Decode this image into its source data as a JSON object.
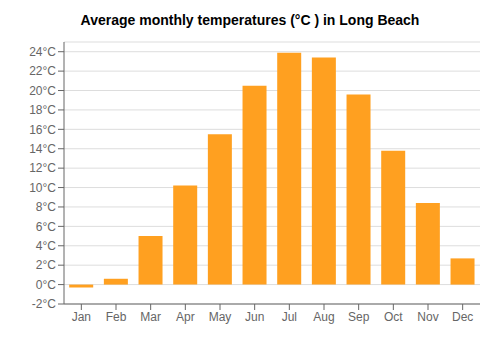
{
  "chart_data": {
    "type": "bar",
    "title": "Average monthly temperatures (°C ) in Long Beach",
    "categories": [
      "Jan",
      "Feb",
      "Mar",
      "Apr",
      "May",
      "Jun",
      "Jul",
      "Aug",
      "Sep",
      "Oct",
      "Nov",
      "Dec"
    ],
    "values": [
      -0.3,
      0.6,
      5.0,
      10.2,
      15.5,
      20.5,
      23.9,
      23.4,
      19.6,
      13.8,
      8.4,
      2.7
    ],
    "color": "#FFA020",
    "ylim": [
      -2,
      25
    ],
    "yticks": [
      {
        "value": -2,
        "label": "-2°C"
      },
      {
        "value": 0,
        "label": "0°C"
      },
      {
        "value": 2,
        "label": "2°C"
      },
      {
        "value": 4,
        "label": "4°C"
      },
      {
        "value": 6,
        "label": "6°C"
      },
      {
        "value": 8,
        "label": "8°C"
      },
      {
        "value": 10,
        "label": "10°C"
      },
      {
        "value": 12,
        "label": "12°C"
      },
      {
        "value": 14,
        "label": "14°C"
      },
      {
        "value": 16,
        "label": "16°C"
      },
      {
        "value": 18,
        "label": "18°C"
      },
      {
        "value": 20,
        "label": "20°C"
      },
      {
        "value": 22,
        "label": "22°C"
      },
      {
        "value": 24,
        "label": "24°C"
      }
    ],
    "grid": true
  }
}
